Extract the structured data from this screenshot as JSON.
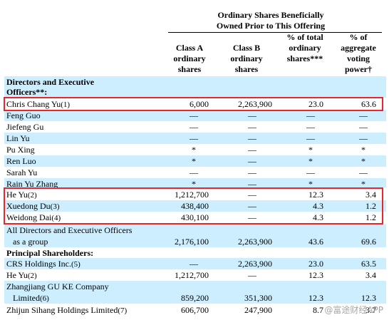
{
  "header": {
    "group_title": "Ordinary Shares Beneficially Owned Prior to This Offering",
    "col1": "Class A ordinary shares",
    "col2": "Class B ordinary shares",
    "col3": "% of total ordinary shares***",
    "col4": "% of aggregate voting power†"
  },
  "sections": {
    "directors": "Directors and Executive Officers**:",
    "principal": "Principal Shareholders:"
  },
  "rows": {
    "chris": {
      "name": "Chris Chang Yu",
      "fn": "(1)",
      "a": "6,000",
      "b": "2,263,900",
      "pct": "23.0",
      "vote": "63.6"
    },
    "feng": {
      "name": "Feng Guo",
      "a": "—",
      "b": "—",
      "pct": "—",
      "vote": "—"
    },
    "jiefeng": {
      "name": "Jiefeng Gu",
      "a": "—",
      "b": "—",
      "pct": "—",
      "vote": "—"
    },
    "linyu": {
      "name": "Lin Yu",
      "a": "—",
      "b": "—",
      "pct": "—",
      "vote": "—"
    },
    "pu": {
      "name": "Pu Xing",
      "a": "*",
      "b": "—",
      "pct": "*",
      "vote": "*"
    },
    "ren": {
      "name": "Ren Luo",
      "a": "*",
      "b": "—",
      "pct": "*",
      "vote": "*"
    },
    "sarah": {
      "name": "Sarah Yu",
      "a": "—",
      "b": "—",
      "pct": "—",
      "vote": "—"
    },
    "rain": {
      "name": "Rain Yu Zhang",
      "a": "*",
      "b": "—",
      "pct": "*",
      "vote": "*"
    },
    "heyu": {
      "name": "He Yu",
      "fn": "(2)",
      "a": "1,212,700",
      "b": "—",
      "pct": "12.3",
      "vote": "3.4"
    },
    "xuedong": {
      "name": "Xuedong Du",
      "fn": "(3)",
      "a": "438,400",
      "b": "—",
      "pct": "4.3",
      "vote": "1.2"
    },
    "weidong": {
      "name": "Weidong Dai",
      "fn": "(4)",
      "a": "430,100",
      "b": "—",
      "pct": "4.3",
      "vote": "1.2"
    },
    "all_line1": "All Directors and Executive Officers",
    "all": {
      "name": "as a group",
      "a": "2,176,100",
      "b": "2,263,900",
      "pct": "43.6",
      "vote": "69.6"
    },
    "crs": {
      "name": "CRS Holdings Inc.",
      "fn": "(5)",
      "a": "—",
      "b": "2,263,900",
      "pct": "23.0",
      "vote": "63.5"
    },
    "heyu2": {
      "name": "He Yu",
      "fn": "(2)",
      "a": "1,212,700",
      "b": "—",
      "pct": "12.3",
      "vote": "3.4"
    },
    "zj_line1": "Zhangjiang GU KE Company",
    "zj": {
      "name": "Limited",
      "fn": "(6)",
      "a": "859,200",
      "b": "351,300",
      "pct": "12.3",
      "vote": "12.3"
    },
    "zhijun": {
      "name": "Zhijun Sihang Holdings Limited",
      "fn": "(7)",
      "a": "606,700",
      "b": "247,900",
      "pct": "8.7",
      "vote": "3.7"
    }
  },
  "watermark": "@富途财经APP",
  "colors": {
    "highlight": "#e8262c",
    "row_tint": "#cceeff"
  }
}
